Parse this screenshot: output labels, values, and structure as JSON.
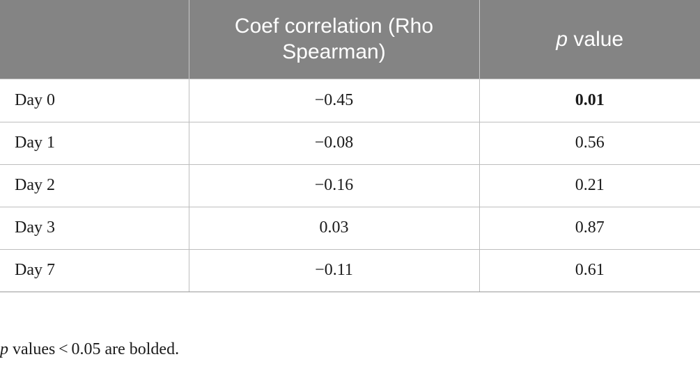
{
  "table": {
    "headers": {
      "blank": "",
      "coef": "Coef correlation (Rho Spearman)",
      "p_italic": "p",
      "p_rest": " value"
    },
    "rows": [
      {
        "label": "Day 0",
        "coef": "−0.45",
        "p": "0.01",
        "p_bold": true
      },
      {
        "label": "Day 1",
        "coef": "−0.08",
        "p": "0.56",
        "p_bold": false
      },
      {
        "label": "Day 2",
        "coef": "−0.16",
        "p": "0.21",
        "p_bold": false
      },
      {
        "label": "Day 3",
        "coef": "0.03",
        "p": "0.87",
        "p_bold": false
      },
      {
        "label": "Day 7",
        "coef": "−0.11",
        "p": "0.61",
        "p_bold": false
      }
    ]
  },
  "footnote": {
    "italic": "p",
    "rest": " values < 0.05 are bolded."
  },
  "colors": {
    "header_bg": "#848484",
    "header_text": "#ffffff",
    "grid": "#bdbdbd"
  }
}
